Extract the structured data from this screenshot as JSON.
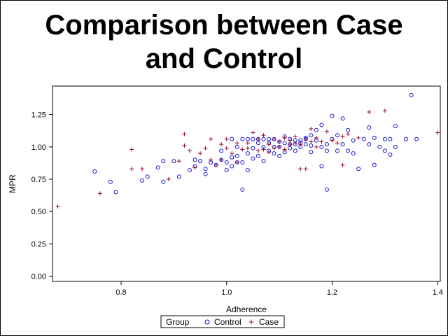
{
  "chart_data": {
    "type": "scatter",
    "title_lines": [
      "Comparison between Case",
      "and Control"
    ],
    "xlabel": "Adherence",
    "ylabel": "MPR",
    "xlim": [
      0.67,
      1.405
    ],
    "ylim": [
      -0.04,
      1.47
    ],
    "x_ticks": [
      "0.8",
      "1.0",
      "1.2",
      "1.4"
    ],
    "y_ticks": [
      "0.00",
      "0.25",
      "0.50",
      "0.75",
      "1.00",
      "1.25"
    ],
    "legend": {
      "title": "Group",
      "position": "bottom-center",
      "entries": [
        "Control",
        "Case"
      ]
    },
    "colors": {
      "Control": "#1010d0",
      "Case": "#9a0a2a"
    },
    "series": [
      {
        "name": "Control",
        "marker": "circle",
        "points": [
          [
            0.75,
            0.81
          ],
          [
            0.78,
            0.73
          ],
          [
            0.79,
            0.65
          ],
          [
            0.84,
            0.74
          ],
          [
            0.85,
            0.77
          ],
          [
            0.87,
            0.84
          ],
          [
            0.88,
            0.89
          ],
          [
            0.88,
            0.73
          ],
          [
            0.9,
            0.89
          ],
          [
            0.91,
            0.77
          ],
          [
            0.93,
            0.82
          ],
          [
            0.94,
            0.9
          ],
          [
            0.94,
            0.85
          ],
          [
            0.95,
            0.89
          ],
          [
            0.96,
            0.83
          ],
          [
            0.96,
            0.79
          ],
          [
            0.97,
            0.88
          ],
          [
            0.98,
            0.86
          ],
          [
            0.99,
            0.9
          ],
          [
            0.99,
            0.97
          ],
          [
            1.0,
            0.88
          ],
          [
            1.0,
            0.82
          ],
          [
            1.01,
            0.92
          ],
          [
            1.01,
            0.85
          ],
          [
            1.02,
            0.88
          ],
          [
            1.02,
            0.93
          ],
          [
            1.03,
            0.67
          ],
          [
            1.03,
            0.88
          ],
          [
            1.04,
            0.95
          ],
          [
            1.04,
            0.82
          ],
          [
            1.05,
            0.91
          ],
          [
            1.05,
            0.99
          ],
          [
            1.06,
            1.06
          ],
          [
            1.06,
            0.93
          ],
          [
            1.07,
            1.0
          ],
          [
            1.07,
            0.89
          ],
          [
            1.08,
            1.03
          ],
          [
            1.08,
            0.97
          ],
          [
            1.09,
            0.95
          ],
          [
            1.09,
            1.06
          ],
          [
            1.1,
            1.0
          ],
          [
            1.1,
            0.93
          ],
          [
            1.11,
            1.03
          ],
          [
            1.11,
            0.96
          ],
          [
            1.12,
            1.06
          ],
          [
            1.12,
            0.99
          ],
          [
            1.13,
            1.02
          ],
          [
            1.13,
            0.97
          ],
          [
            1.14,
            1.05
          ],
          [
            1.14,
            1.0
          ],
          [
            1.15,
            1.07
          ],
          [
            1.15,
            1.02
          ],
          [
            1.16,
            1.09
          ],
          [
            1.16,
            0.96
          ],
          [
            1.17,
            1.05
          ],
          [
            1.17,
            1.13
          ],
          [
            1.18,
            1.0
          ],
          [
            1.18,
            0.85
          ],
          [
            1.18,
            1.17
          ],
          [
            1.19,
            0.97
          ],
          [
            1.19,
            1.02
          ],
          [
            1.19,
            0.67
          ],
          [
            1.2,
            1.06
          ],
          [
            1.2,
            1.24
          ],
          [
            1.21,
            0.97
          ],
          [
            1.21,
            1.09
          ],
          [
            1.22,
            1.02
          ],
          [
            1.22,
            1.22
          ],
          [
            1.23,
            0.97
          ],
          [
            1.23,
            1.13
          ],
          [
            1.24,
            1.05
          ],
          [
            1.24,
            0.95
          ],
          [
            1.25,
            0.83
          ],
          [
            1.26,
            1.06
          ],
          [
            1.27,
            1.15
          ],
          [
            1.27,
            1.02
          ],
          [
            1.28,
            0.86
          ],
          [
            1.28,
            1.07
          ],
          [
            1.29,
            1.0
          ],
          [
            1.3,
            0.97
          ],
          [
            1.3,
            1.06
          ],
          [
            1.31,
            1.06
          ],
          [
            1.31,
            0.94
          ],
          [
            1.32,
            1.16
          ],
          [
            1.32,
            1.0
          ],
          [
            1.34,
            1.06
          ],
          [
            1.35,
            1.4
          ],
          [
            1.36,
            1.06
          ],
          [
            1.1,
            1.04
          ],
          [
            1.11,
            1.08
          ],
          [
            1.12,
            1.02
          ],
          [
            1.13,
            1.05
          ],
          [
            1.14,
            1.03
          ],
          [
            1.15,
            1.06
          ],
          [
            1.16,
            1.01
          ],
          [
            1.08,
            1.06
          ],
          [
            1.09,
            1.0
          ],
          [
            1.07,
            1.06
          ],
          [
            1.06,
            1.03
          ],
          [
            1.05,
            1.06
          ],
          [
            1.04,
            1.06
          ],
          [
            1.03,
            1.06
          ],
          [
            1.02,
            1.0
          ],
          [
            1.01,
            1.06
          ]
        ]
      },
      {
        "name": "Case",
        "marker": "plus",
        "points": [
          [
            0.68,
            0.54
          ],
          [
            0.76,
            0.64
          ],
          [
            0.82,
            0.98
          ],
          [
            0.82,
            0.83
          ],
          [
            0.84,
            0.83
          ],
          [
            0.89,
            0.75
          ],
          [
            0.91,
            0.89
          ],
          [
            0.92,
            1.1
          ],
          [
            0.92,
            1.01
          ],
          [
            0.93,
            0.97
          ],
          [
            0.94,
            0.84
          ],
          [
            0.95,
            0.95
          ],
          [
            0.96,
            0.99
          ],
          [
            0.97,
            1.06
          ],
          [
            0.97,
            0.9
          ],
          [
            0.98,
            0.86
          ],
          [
            0.99,
            1.02
          ],
          [
            0.99,
            0.9
          ],
          [
            1.0,
            0.99
          ],
          [
            1.0,
            1.06
          ],
          [
            1.01,
            0.95
          ],
          [
            1.02,
            1.03
          ],
          [
            1.02,
            0.88
          ],
          [
            1.03,
            0.98
          ],
          [
            1.04,
            0.99
          ],
          [
            1.04,
            1.03
          ],
          [
            1.05,
            1.11
          ],
          [
            1.06,
            1.06
          ],
          [
            1.06,
            0.97
          ],
          [
            1.07,
            0.98
          ],
          [
            1.07,
            1.09
          ],
          [
            1.08,
            1.02
          ],
          [
            1.08,
            0.96
          ],
          [
            1.09,
            1.06
          ],
          [
            1.09,
            0.99
          ],
          [
            1.1,
            1.04
          ],
          [
            1.1,
            1.0
          ],
          [
            1.11,
            1.07
          ],
          [
            1.11,
            0.98
          ],
          [
            1.12,
            1.02
          ],
          [
            1.12,
            1.05
          ],
          [
            1.13,
            1.03
          ],
          [
            1.13,
            1.08
          ],
          [
            1.14,
            0.83
          ],
          [
            1.14,
            1.02
          ],
          [
            1.15,
            0.83
          ],
          [
            1.15,
            1.06
          ],
          [
            1.16,
            1.04
          ],
          [
            1.16,
            1.14
          ],
          [
            1.17,
            1.0
          ],
          [
            1.17,
            1.07
          ],
          [
            1.18,
            1.04
          ],
          [
            1.19,
            1.12
          ],
          [
            1.2,
            1.05
          ],
          [
            1.21,
            1.03
          ],
          [
            1.22,
            1.08
          ],
          [
            1.22,
            0.86
          ],
          [
            1.23,
            1.1
          ],
          [
            1.25,
            1.07
          ],
          [
            1.27,
            1.27
          ],
          [
            1.3,
            1.28
          ],
          [
            1.4,
            1.11
          ]
        ]
      }
    ]
  }
}
